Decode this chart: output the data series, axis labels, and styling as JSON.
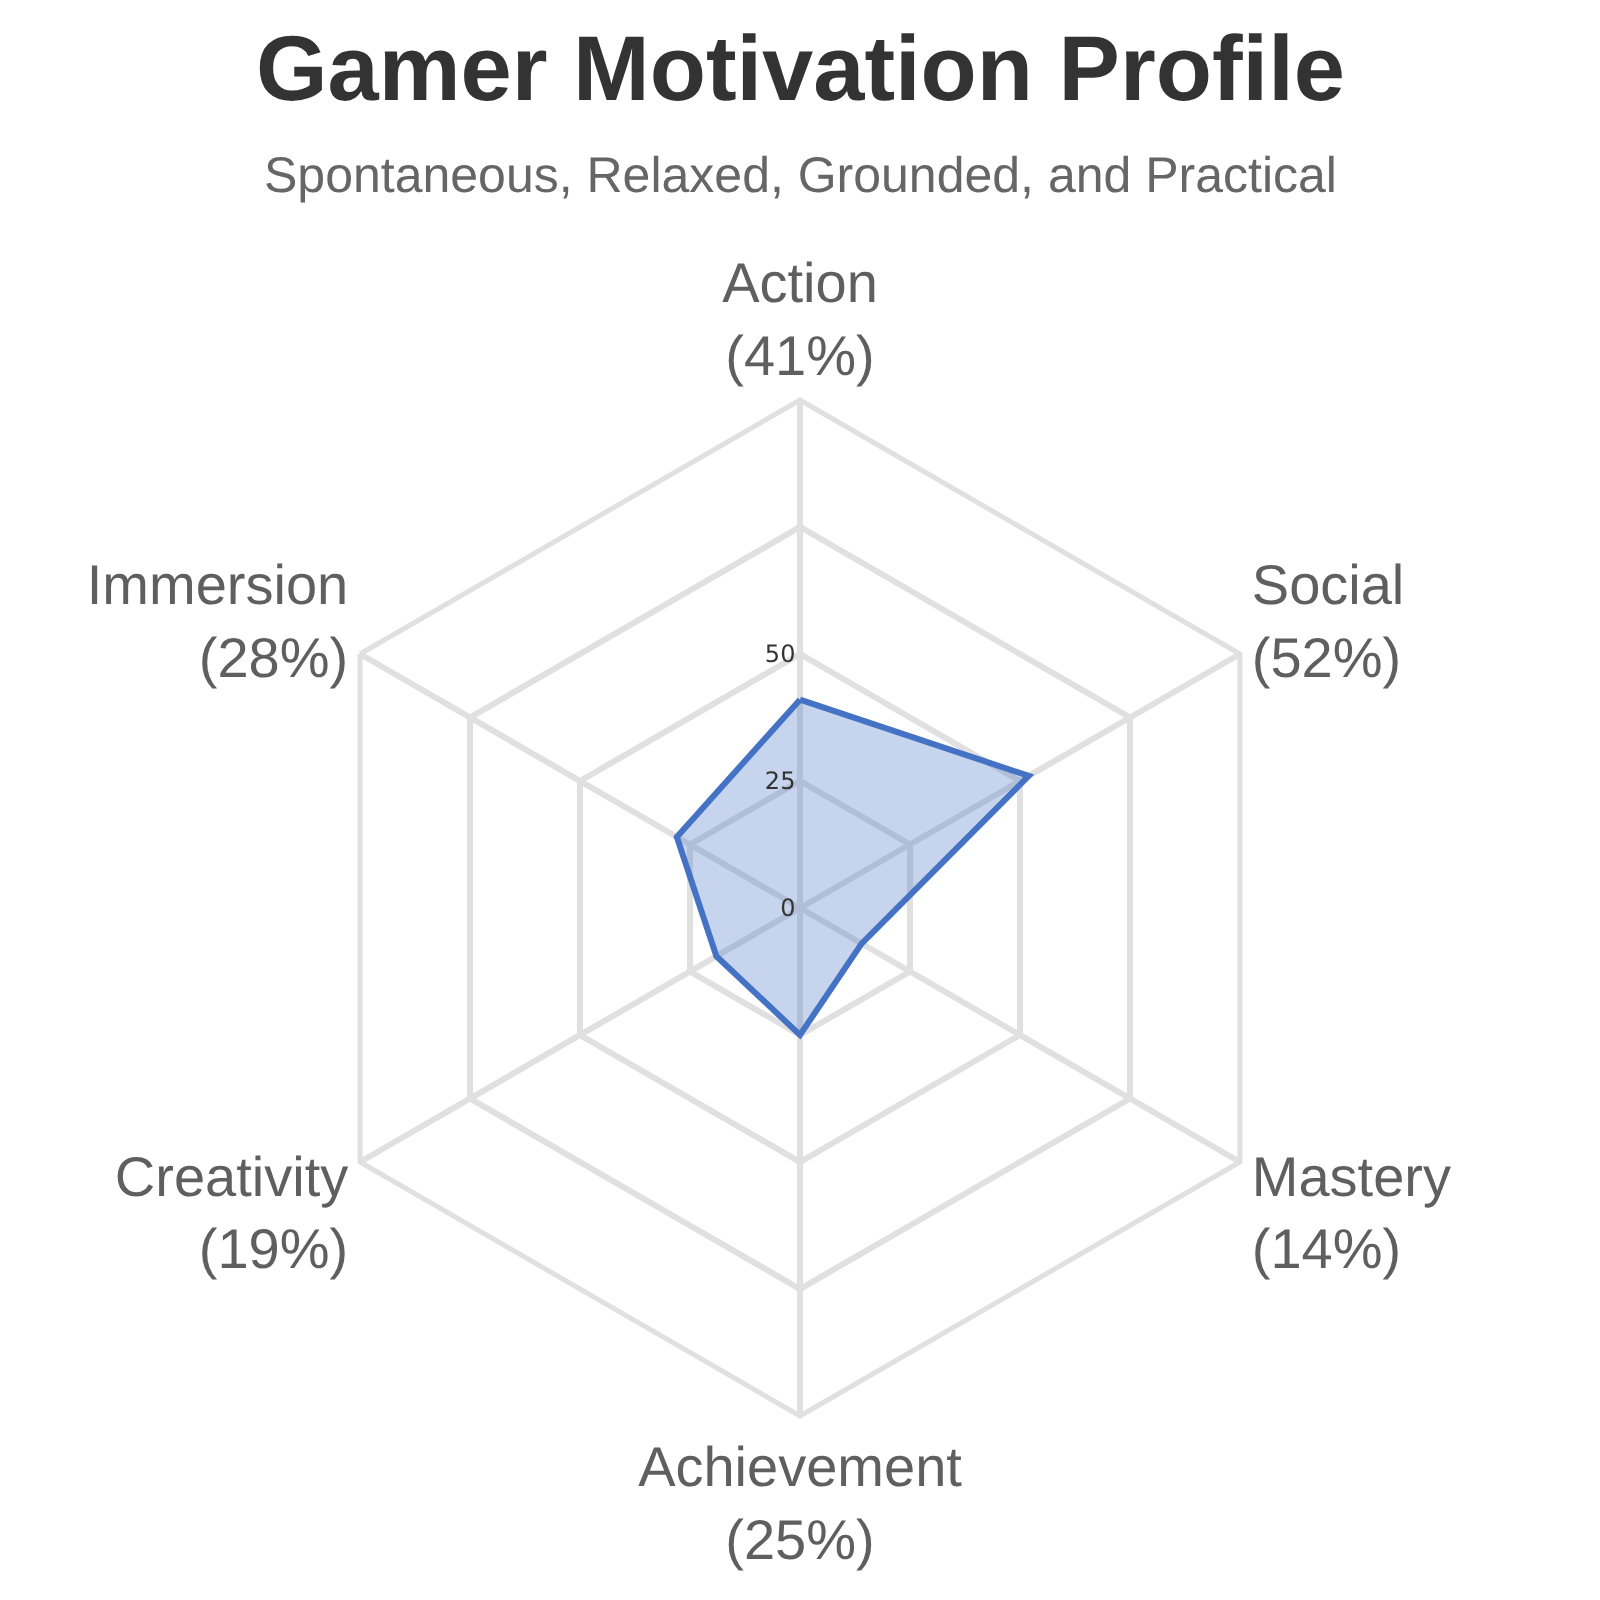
{
  "chart_data": {
    "type": "radar",
    "title": "Gamer Motivation Profile",
    "subtitle": "Spontaneous, Relaxed, Grounded, and Practical",
    "categories": [
      "Action\n(41%)",
      "Social\n(52%)",
      "Mastery\n(14%)",
      "Achievement\n(25%)",
      "Creativity\n(19%)",
      "Immersion\n(28%)"
    ],
    "series": [
      {
        "color": "#4472c4",
        "values": [
          41,
          52,
          14,
          25,
          19,
          28
        ]
      }
    ],
    "ylim": [
      0,
      100
    ],
    "yticks": [
      0,
      25,
      50
    ],
    "grid": true,
    "marker": "none"
  }
}
